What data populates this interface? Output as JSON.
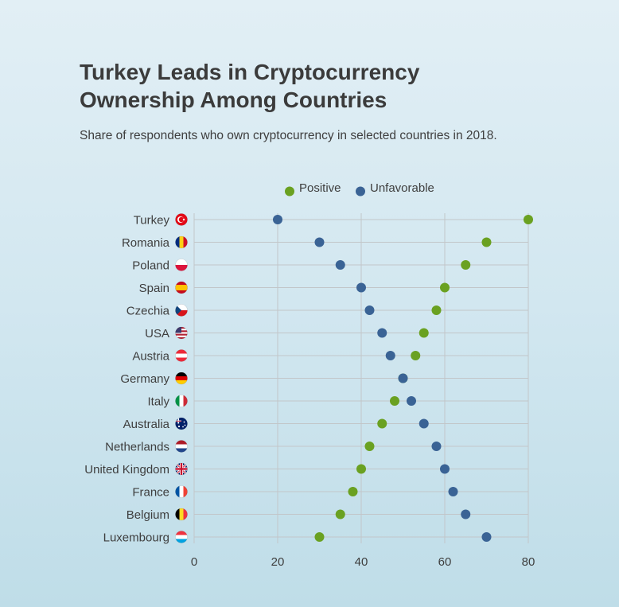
{
  "title": "Turkey Leads in Cryptocurrency Ownership Among Countries",
  "subtitle": "Share of respondents who own cryptocurrency in selected countries in 2018.",
  "chart_data": {
    "type": "scatter",
    "orientation": "horizontal-dot-plot",
    "categories": [
      "Turkey",
      "Romania",
      "Poland",
      "Spain",
      "Czechia",
      "USA",
      "Austria",
      "Germany",
      "Italy",
      "Australia",
      "Netherlands",
      "United Kingdom",
      "France",
      "Belgium",
      "Luxembourg"
    ],
    "flags": [
      "turkey-flag-icon",
      "romania-flag-icon",
      "poland-flag-icon",
      "spain-flag-icon",
      "czechia-flag-icon",
      "usa-flag-icon",
      "austria-flag-icon",
      "germany-flag-icon",
      "italy-flag-icon",
      "australia-flag-icon",
      "netherlands-flag-icon",
      "uk-flag-icon",
      "france-flag-icon",
      "belgium-flag-icon",
      "luxembourg-flag-icon"
    ],
    "series": [
      {
        "name": "Positive",
        "color": "#6aa121",
        "values": [
          80,
          70,
          65,
          60,
          58,
          55,
          53,
          50,
          48,
          45,
          42,
          40,
          38,
          35,
          30
        ]
      },
      {
        "name": "Unfavorable",
        "color": "#3a6395",
        "values": [
          20,
          30,
          35,
          40,
          42,
          45,
          47,
          50,
          52,
          55,
          58,
          60,
          62,
          65,
          70
        ]
      }
    ],
    "xlim": [
      0,
      80
    ],
    "xticks": [
      0,
      20,
      40,
      60,
      80
    ],
    "grid": true,
    "legend": "top-center"
  }
}
